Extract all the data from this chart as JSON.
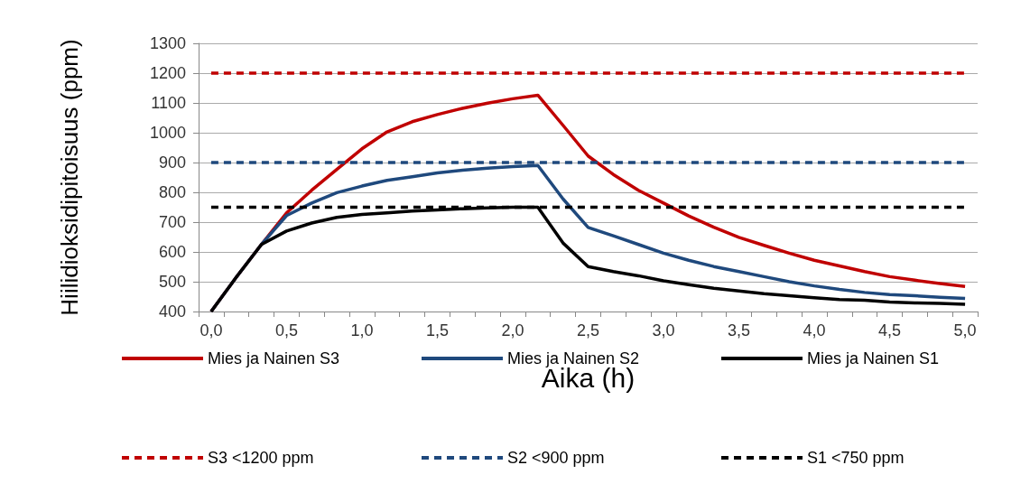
{
  "chart_data": {
    "type": "line",
    "xlabel": "Aika (h)",
    "ylabel": "Hiilidioksidipitoisuus (ppm)",
    "categories": [
      "0,0",
      null,
      null,
      "0,5",
      null,
      null,
      "1,0",
      null,
      null,
      "1,5",
      null,
      null,
      "2,0",
      null,
      null,
      "2,5",
      null,
      null,
      "3,0",
      null,
      null,
      "3,5",
      null,
      null,
      "4,0",
      null,
      null,
      "4,5",
      null,
      null,
      "5,0"
    ],
    "ylim": [
      400,
      1300
    ],
    "yticks": [
      400,
      500,
      600,
      700,
      800,
      900,
      1000,
      1100,
      1200,
      1300
    ],
    "grid": "y",
    "legend": "bottom",
    "marker": "none",
    "series": [
      {
        "name": "Mies ja Nainen S3",
        "color": "#c00000",
        "line_style": "solid",
        "values": [
          400,
          515,
          625,
          731,
          807,
          877,
          946,
          1003,
          1037,
          1061,
          1082,
          1099,
          1114,
          1126,
          1025,
          922,
          860,
          807,
          764,
          721,
          683,
          649,
          622,
          596,
          572,
          553,
          534,
          517,
          505,
          494,
          484
        ]
      },
      {
        "name": "Mies ja Nainen S2",
        "color": "#1f497d",
        "line_style": "solid",
        "values": [
          400,
          515,
          625,
          722,
          764,
          799,
          821,
          840,
          852,
          865,
          874,
          881,
          886,
          890,
          778,
          682,
          654,
          625,
          596,
          572,
          551,
          534,
          517,
          500,
          486,
          474,
          464,
          457,
          453,
          448,
          444
        ]
      },
      {
        "name": "Mies ja Nainen S1",
        "color": "#000000",
        "line_style": "solid",
        "values": [
          400,
          515,
          625,
          670,
          697,
          716,
          726,
          731,
          737,
          741,
          745,
          748,
          750,
          750,
          630,
          551,
          534,
          520,
          503,
          490,
          478,
          469,
          460,
          453,
          446,
          440,
          438,
          432,
          429,
          427,
          424
        ]
      },
      {
        "name": "S3 <1200 ppm",
        "color": "#c00000",
        "line_style": "dashed",
        "values": [
          1200,
          1200,
          1200,
          1200,
          1200,
          1200,
          1200,
          1200,
          1200,
          1200,
          1200,
          1200,
          1200,
          1200,
          1200,
          1200,
          1200,
          1200,
          1200,
          1200,
          1200,
          1200,
          1200,
          1200,
          1200,
          1200,
          1200,
          1200,
          1200,
          1200,
          1200
        ]
      },
      {
        "name": "S2 <900 ppm",
        "color": "#1f497d",
        "line_style": "dashed",
        "values": [
          900,
          900,
          900,
          900,
          900,
          900,
          900,
          900,
          900,
          900,
          900,
          900,
          900,
          900,
          900,
          900,
          900,
          900,
          900,
          900,
          900,
          900,
          900,
          900,
          900,
          900,
          900,
          900,
          900,
          900,
          900
        ]
      },
      {
        "name": "S1 <750 ppm",
        "color": "#000000",
        "line_style": "dashed",
        "values": [
          750,
          750,
          750,
          750,
          750,
          750,
          750,
          750,
          750,
          750,
          750,
          750,
          750,
          750,
          750,
          750,
          750,
          750,
          750,
          750,
          750,
          750,
          750,
          750,
          750,
          750,
          750,
          750,
          750,
          750,
          750
        ]
      }
    ]
  }
}
